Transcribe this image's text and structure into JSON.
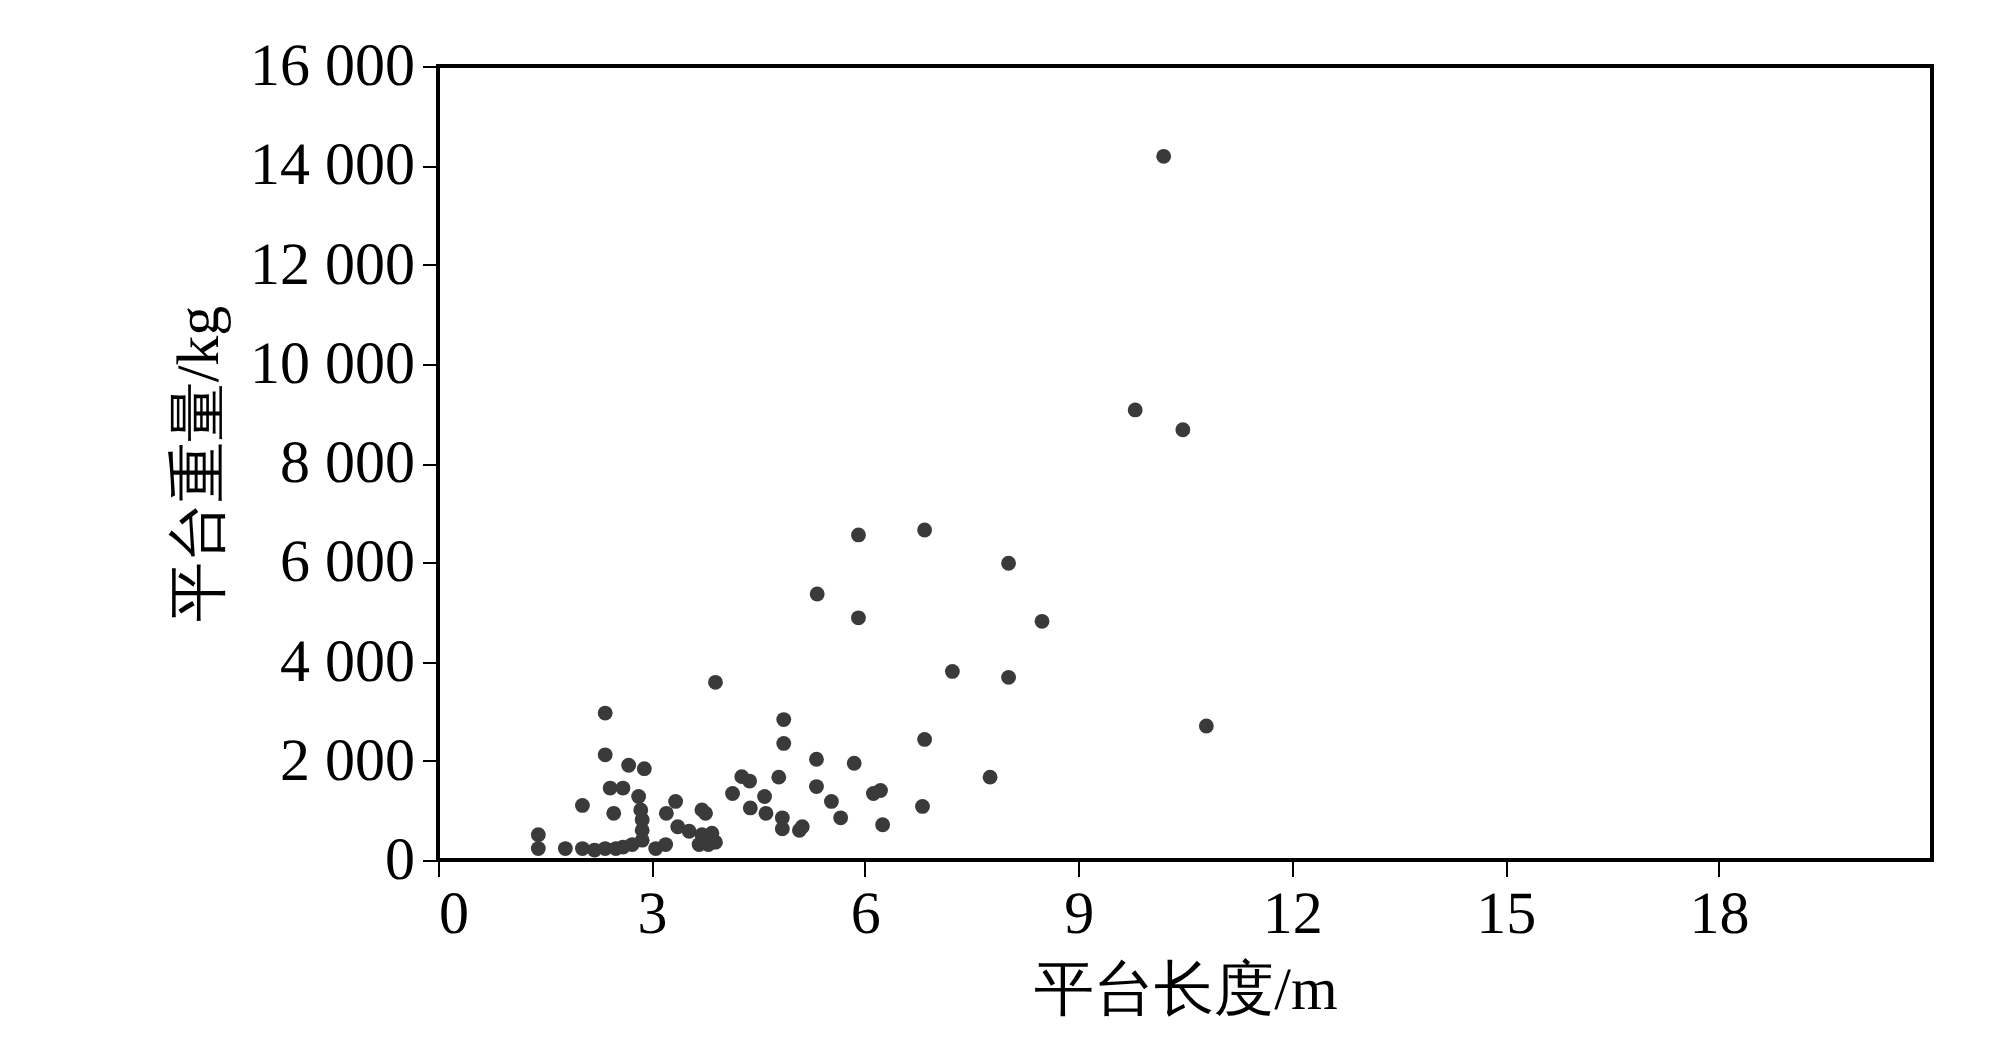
{
  "chart_data": {
    "type": "scatter",
    "xlabel": "平台长度/m",
    "ylabel": "平台重量/kg",
    "xlim": [
      0,
      21
    ],
    "ylim": [
      0,
      16000
    ],
    "xticks": [
      0,
      3,
      6,
      9,
      12,
      15,
      18
    ],
    "yticks": [
      0,
      {
        "value": 2000,
        "label": "2 000"
      },
      {
        "value": 4000,
        "label": "4 000"
      },
      {
        "value": 6000,
        "label": "6 000"
      },
      {
        "value": 8000,
        "label": "8 000"
      },
      {
        "value": 10000,
        "label": "10 000"
      },
      {
        "value": 12000,
        "label": "12 000"
      },
      {
        "value": 14000,
        "label": "14 000"
      },
      {
        "value": 16000,
        "label": "16 000"
      }
    ],
    "grid": false,
    "marker": "circle",
    "series": [
      {
        "color": "#3a3a3a",
        "x": [
          10.2,
          9.8,
          10.47,
          10.8,
          5.91,
          6.84,
          8.02,
          5.33,
          5.91,
          8.49,
          7.23,
          8.02,
          3.9,
          4.86,
          4.86,
          6.84,
          5.32,
          5.85,
          7.76,
          4.79,
          4.27,
          4.38,
          5.32,
          6.12,
          6.22,
          2.35,
          2.35,
          2.68,
          2.9,
          2.42,
          2.6,
          4.14,
          2.82,
          4.59,
          3.34,
          2.03,
          5.53,
          6.81,
          4.39,
          2.85,
          2.47,
          3.71,
          3.76,
          4.61,
          4.84,
          5.66,
          5.12,
          5.08,
          6.25,
          2.87,
          3.21,
          3.37,
          3.53,
          3.71,
          3.85,
          4.84,
          2.87,
          2.87,
          1.41,
          1.41,
          1.79,
          2.03,
          2.2,
          2.35,
          2.5,
          2.6,
          2.73,
          3.06,
          3.2,
          3.67,
          3.8,
          3.9
        ],
        "values": [
          14180,
          9070,
          8670,
          2700,
          6550,
          6650,
          5980,
          5360,
          4880,
          4810,
          3800,
          3680,
          3580,
          2830,
          2350,
          2430,
          2030,
          1950,
          1670,
          1670,
          1680,
          1590,
          1480,
          1340,
          1400,
          2960,
          2120,
          1910,
          1840,
          1450,
          1450,
          1340,
          1280,
          1280,
          1180,
          1100,
          1180,
          1080,
          1050,
          1010,
          940,
          1010,
          940,
          940,
          850,
          850,
          670,
          600,
          710,
          810,
          940,
          670,
          580,
          510,
          540,
          630,
          600,
          400,
          510,
          230,
          230,
          230,
          200,
          230,
          230,
          260,
          310,
          230,
          310,
          310,
          310,
          360
        ]
      }
    ]
  }
}
